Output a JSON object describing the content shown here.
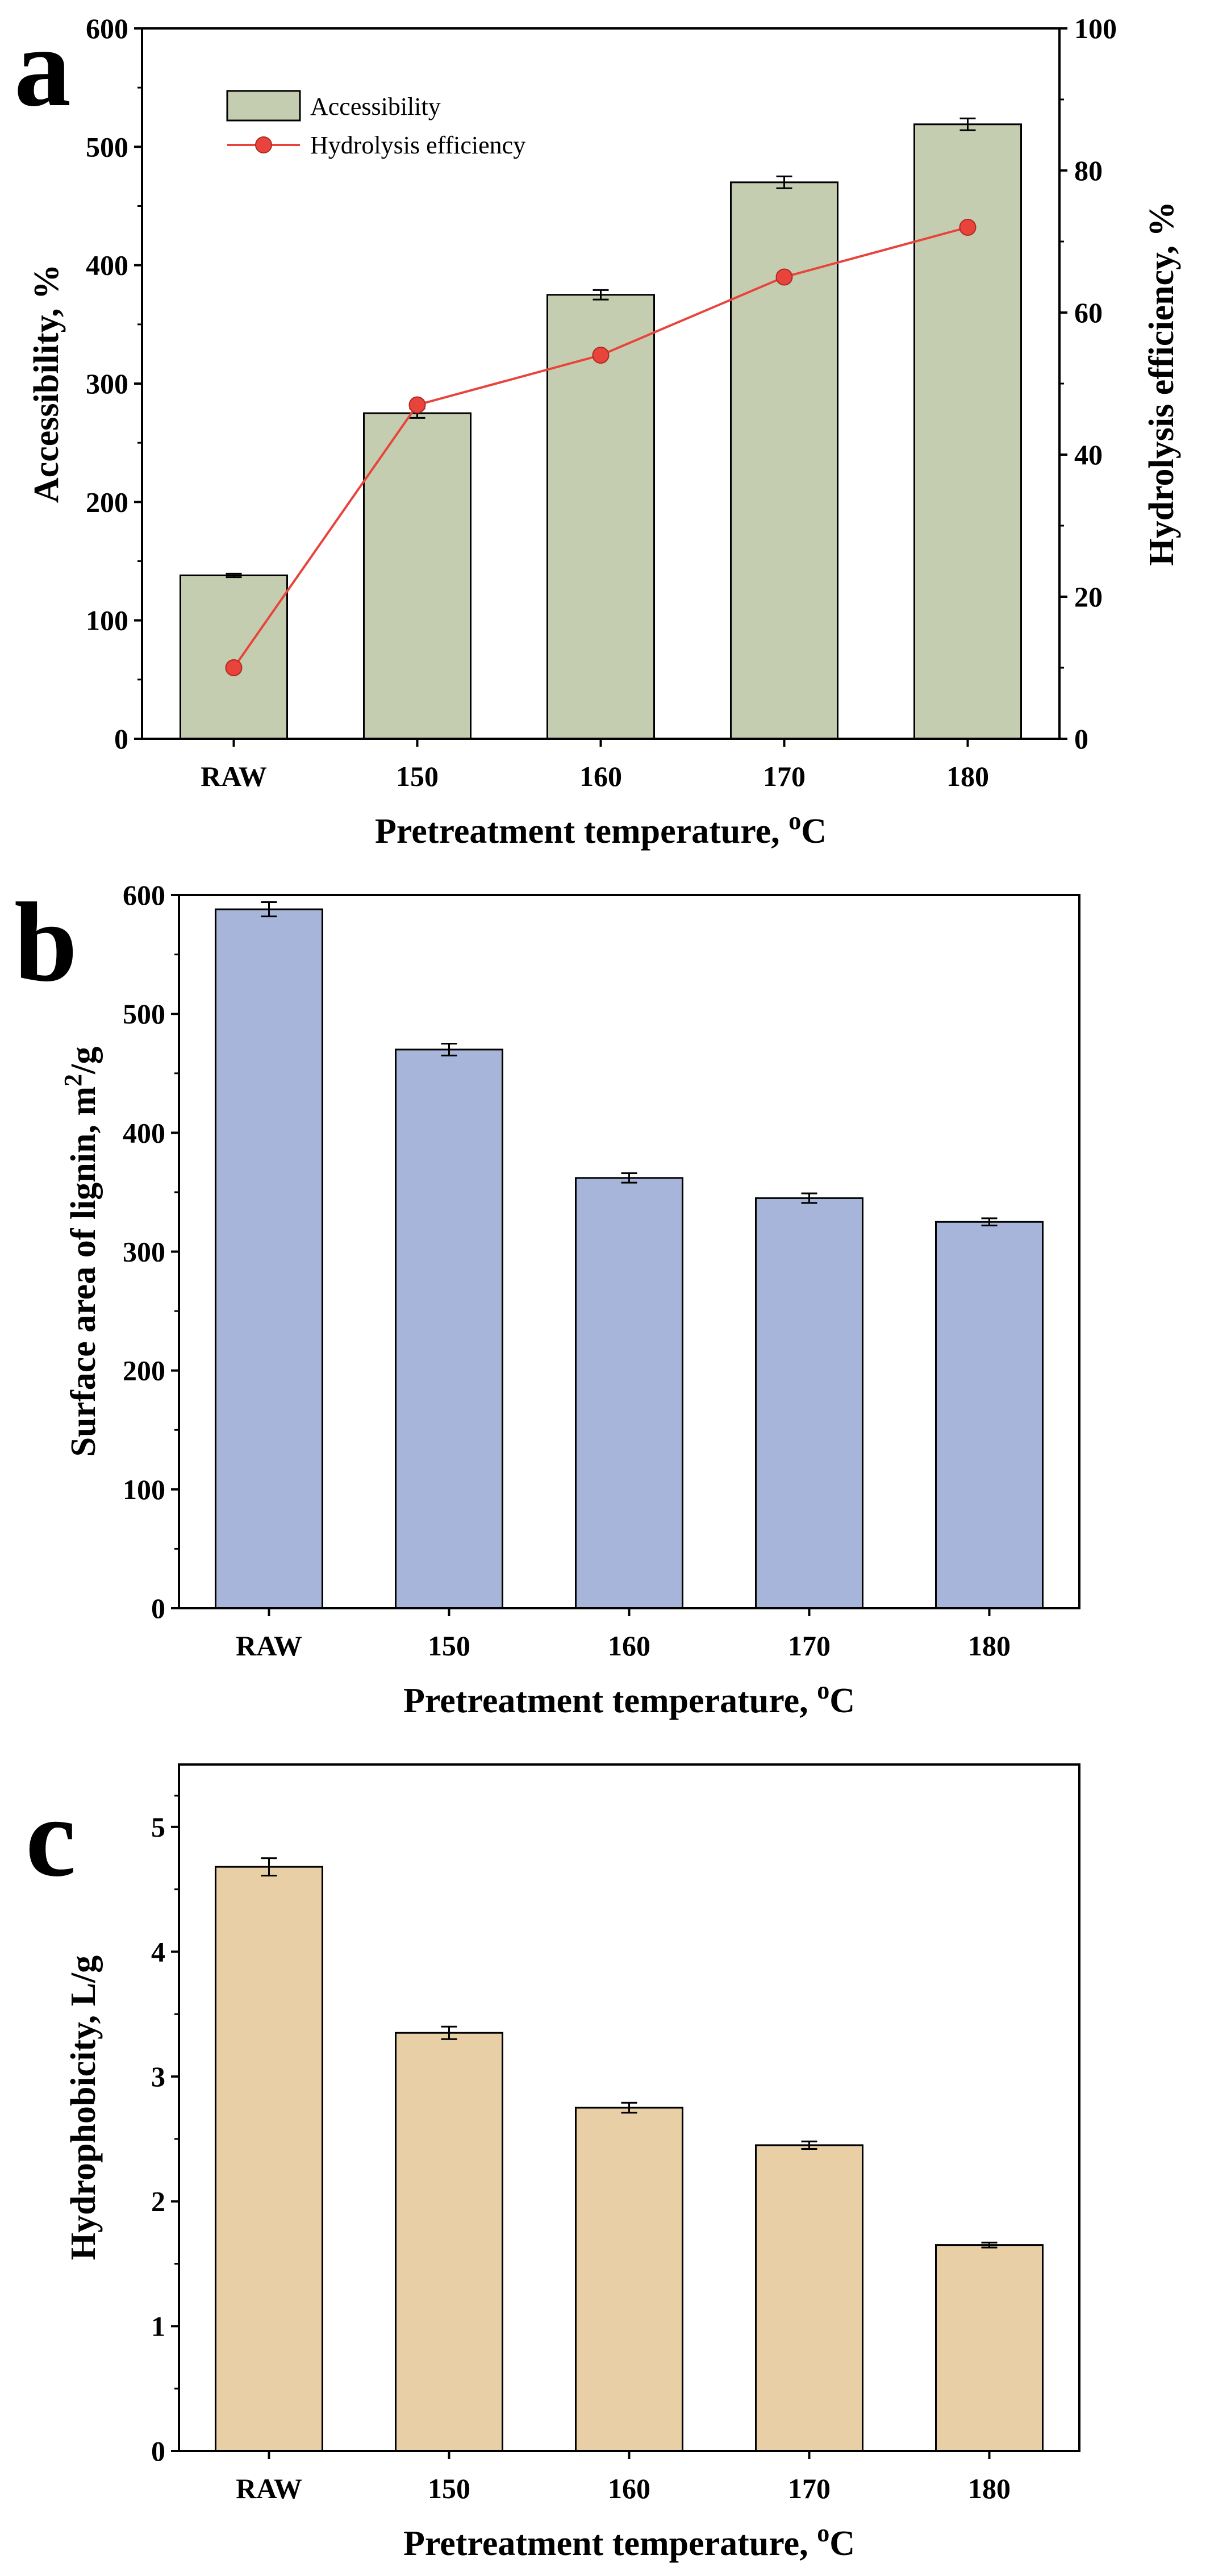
{
  "chart_data": [
    {
      "panel": "a",
      "type": "bar",
      "categories": [
        "RAW",
        "150",
        "160",
        "170",
        "180"
      ],
      "xlabel": "Pretreatment temperature, ",
      "xlabel_sup": "o",
      "xlabel_unit": "C",
      "ylabel": "Accessibility, %",
      "ylim": [
        0,
        600
      ],
      "yticks": [
        0,
        100,
        200,
        300,
        400,
        500,
        600
      ],
      "y2label": "Hydrolysis efficiency, %",
      "y2lim": [
        0,
        100
      ],
      "y2ticks": [
        0,
        20,
        40,
        60,
        80,
        100
      ],
      "bar_color": "#c5cdb0",
      "line_color": "#e8443c",
      "series": [
        {
          "name": "Accessibility",
          "type": "bar",
          "axis": "left",
          "values": [
            138,
            275,
            375,
            470,
            519
          ],
          "errors": [
            1.5,
            4,
            4,
            5,
            5
          ]
        },
        {
          "name": "Hydrolysis efficiency",
          "type": "line",
          "axis": "right",
          "values": [
            10,
            47,
            54,
            65,
            72
          ]
        }
      ],
      "legend": "top-left"
    },
    {
      "panel": "b",
      "type": "bar",
      "categories": [
        "RAW",
        "150",
        "160",
        "170",
        "180"
      ],
      "xlabel": "Pretreatment temperature, ",
      "xlabel_sup": "o",
      "xlabel_unit": "C",
      "ylabel": "Surface area of lignin, m",
      "ylabel_sup": "2",
      "ylabel_unit": "/g",
      "ylim": [
        0,
        600
      ],
      "yticks": [
        0,
        100,
        200,
        300,
        400,
        500,
        600
      ],
      "bar_color": "#a8b5da",
      "series": [
        {
          "name": "Surface area of lignin",
          "values": [
            588,
            470,
            362,
            345,
            325
          ],
          "errors": [
            6,
            5,
            4,
            4,
            3
          ]
        }
      ]
    },
    {
      "panel": "c",
      "type": "bar",
      "categories": [
        "RAW",
        "150",
        "160",
        "170",
        "180"
      ],
      "xlabel": "Pretreatment temperature, ",
      "xlabel_sup": "o",
      "xlabel_unit": "C",
      "ylabel": "Hydrophobicity, L/g",
      "ylim": [
        0,
        5.5
      ],
      "yticks": [
        0,
        1,
        2,
        3,
        4,
        5
      ],
      "bar_color": "#e8cfa5",
      "series": [
        {
          "name": "Hydrophobicity",
          "values": [
            4.68,
            3.35,
            2.75,
            2.45,
            1.65
          ],
          "errors": [
            0.07,
            0.05,
            0.04,
            0.03,
            0.02
          ]
        }
      ]
    }
  ]
}
